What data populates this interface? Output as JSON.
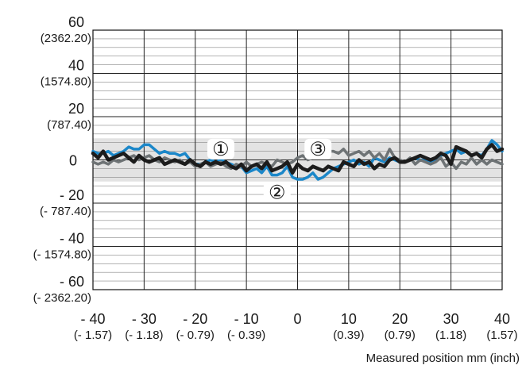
{
  "chart_data": {
    "type": "line",
    "xlabel": "Measured position mm (inch)",
    "xlim": [
      -40,
      40
    ],
    "ylim": [
      -60,
      60
    ],
    "grid": true,
    "tolerance_band": [
      -10,
      10
    ],
    "x_ticks": [
      {
        "value": -40,
        "label": "- 40",
        "sub": "(- 1.57)"
      },
      {
        "value": -30,
        "label": "- 30",
        "sub": "(- 1.18)"
      },
      {
        "value": -20,
        "label": "- 20",
        "sub": "(- 0.79)"
      },
      {
        "value": -10,
        "label": "- 10",
        "sub": "(- 0.39)"
      },
      {
        "value": 0,
        "label": "0",
        "sub": ""
      },
      {
        "value": 10,
        "label": "10",
        "sub": "(0.39)"
      },
      {
        "value": 20,
        "label": "20",
        "sub": "(0.79)"
      },
      {
        "value": 30,
        "label": "30",
        "sub": "(1.18)"
      },
      {
        "value": 40,
        "label": "40",
        "sub": "(1.57)"
      }
    ],
    "y_ticks": [
      {
        "value": 60,
        "label": "60",
        "sub": "(2362.20)"
      },
      {
        "value": 40,
        "label": "40",
        "sub": "(1574.80)"
      },
      {
        "value": 20,
        "label": "20",
        "sub": "(787.40)"
      },
      {
        "value": 0,
        "label": "0",
        "sub": ""
      },
      {
        "value": -20,
        "label": "- 20",
        "sub": "(- 787.40)"
      },
      {
        "value": -40,
        "label": "- 40",
        "sub": "(- 1574.80)"
      },
      {
        "value": -60,
        "label": "- 60",
        "sub": "(- 2362.20)"
      }
    ],
    "x": [
      -40,
      -39,
      -38,
      -37,
      -36,
      -35,
      -34,
      -33,
      -32,
      -31,
      -30,
      -29,
      -28,
      -27,
      -26,
      -25,
      -24,
      -23,
      -22,
      -21,
      -20,
      -19,
      -18,
      -17,
      -16,
      -15,
      -14,
      -13,
      -12,
      -11,
      -10,
      -9,
      -8,
      -7,
      -6,
      -5,
      -4,
      -3,
      -2,
      -1,
      0,
      1,
      2,
      3,
      4,
      5,
      6,
      7,
      8,
      9,
      10,
      11,
      12,
      13,
      14,
      15,
      16,
      17,
      18,
      19,
      20,
      21,
      22,
      23,
      24,
      25,
      26,
      27,
      28,
      29,
      30,
      31,
      32,
      33,
      34,
      35,
      36,
      37,
      38,
      39,
      40
    ],
    "series": [
      {
        "marker": "②",
        "color": "#1b87c9",
        "width": 3.5,
        "values": [
          4,
          3,
          3,
          4,
          2,
          3,
          4,
          6,
          5,
          5,
          7,
          7,
          5,
          3,
          4,
          3,
          3,
          2,
          3,
          0,
          -2,
          -2,
          -1,
          0,
          -1,
          0,
          -1,
          -2,
          -3,
          -3,
          -6,
          -5,
          -4,
          -6,
          -3,
          -7,
          -7,
          -6,
          -3,
          -8,
          -9,
          -9,
          -8,
          -6,
          -9,
          -8,
          -6,
          -4,
          -3,
          -2,
          -1,
          0,
          -2,
          -1,
          -3,
          1,
          0,
          -1,
          1,
          0,
          -1,
          -1,
          0,
          1,
          0,
          0,
          -1,
          0,
          2,
          3,
          4,
          5,
          3,
          4,
          2,
          3,
          2,
          5,
          9,
          7,
          4
        ]
      },
      {
        "marker": "③",
        "color": "#6e7375",
        "width": 3.5,
        "values": [
          -1,
          -2,
          -1,
          -2,
          0,
          -1,
          0,
          1,
          2,
          0,
          1,
          2,
          0,
          -1,
          1,
          0,
          -1,
          0,
          -2,
          -1,
          -3,
          -2,
          -1,
          -3,
          -2,
          -1,
          -3,
          -4,
          -2,
          -3,
          -1,
          -3,
          -2,
          -1,
          -2,
          -3,
          0,
          -1,
          -2,
          -1,
          1,
          2,
          0,
          1,
          2,
          3,
          4,
          4,
          3,
          5,
          2,
          3,
          4,
          2,
          4,
          1,
          3,
          0,
          5,
          1,
          0,
          -1,
          1,
          -2,
          0,
          -1,
          -2,
          -1,
          1,
          -3,
          -1,
          -4,
          -1,
          -2,
          1,
          -2,
          0,
          -2,
          0,
          -1,
          -2
        ]
      },
      {
        "marker": "①",
        "color": "#1c1c1c",
        "width": 4.5,
        "values": [
          3,
          1,
          4,
          0,
          1,
          2,
          3,
          1,
          -1,
          2,
          0,
          -1,
          0,
          1,
          -2,
          -1,
          0,
          -1,
          -2,
          0,
          -2,
          -3,
          -1,
          -2,
          -1,
          -2,
          -1,
          -3,
          -4,
          -2,
          -5,
          -3,
          -2,
          -4,
          -1,
          -5,
          -4,
          -3,
          -1,
          -6,
          -2,
          -4,
          -5,
          -3,
          -4,
          -5,
          -3,
          -4,
          -5,
          -1,
          -2,
          -3,
          0,
          -2,
          -1,
          -4,
          -2,
          -3,
          0,
          1,
          -1,
          -1,
          0,
          1,
          2,
          1,
          0,
          1,
          3,
          2,
          -2,
          6,
          5,
          4,
          2,
          3,
          1,
          5,
          7,
          4,
          5
        ]
      }
    ],
    "markers": [
      {
        "label": "①",
        "x": -15,
        "y": 5
      },
      {
        "label": "②",
        "x": -4,
        "y": -15
      },
      {
        "label": "③",
        "x": 4,
        "y": 5
      }
    ]
  }
}
